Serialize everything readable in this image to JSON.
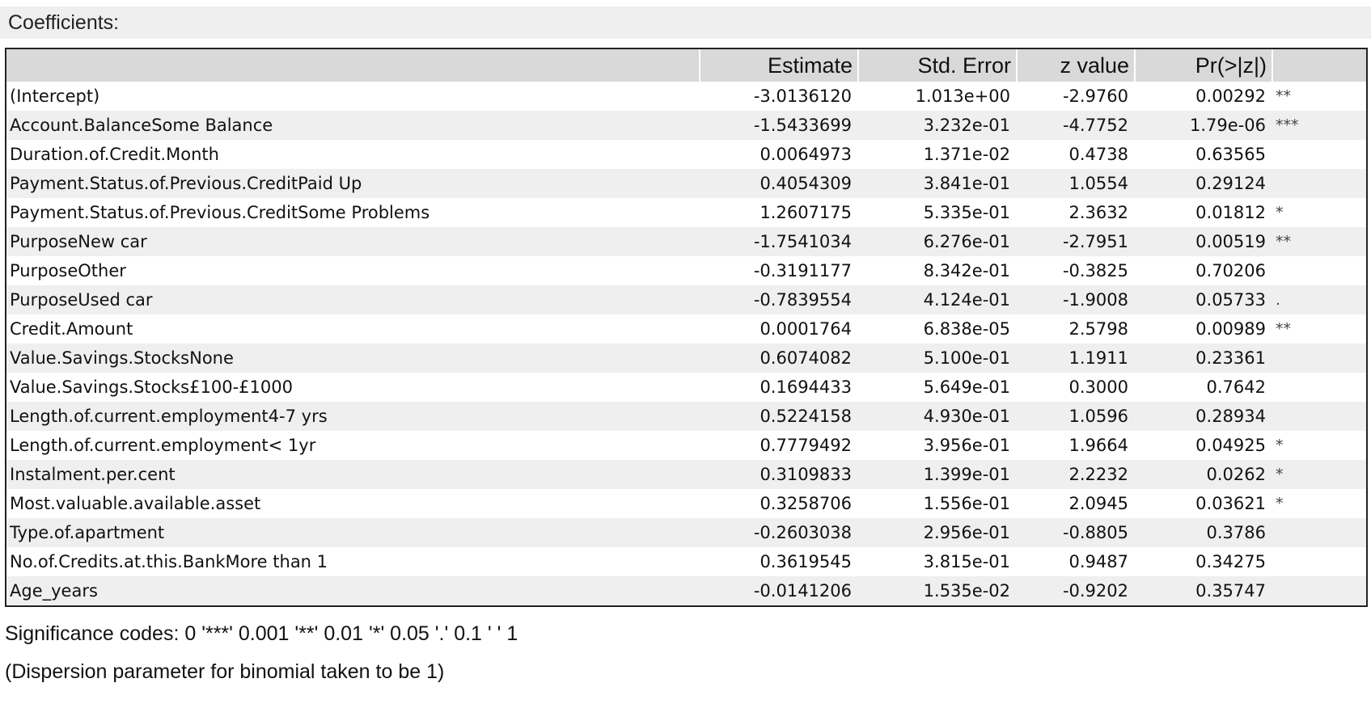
{
  "caption": "Coefficients:",
  "columns": [
    "Estimate",
    "Std. Error",
    "z value",
    "Pr(>|z|)"
  ],
  "rows": [
    {
      "term": "(Intercept)",
      "estimate": "-3.0136120",
      "std_error": "1.013e+00",
      "z_value": "-2.9760",
      "p_value": "0.00292",
      "sig": "**"
    },
    {
      "term": "Account.BalanceSome Balance",
      "estimate": "-1.5433699",
      "std_error": "3.232e-01",
      "z_value": "-4.7752",
      "p_value": "1.79e-06",
      "sig": "***"
    },
    {
      "term": "Duration.of.Credit.Month",
      "estimate": "0.0064973",
      "std_error": "1.371e-02",
      "z_value": "0.4738",
      "p_value": "0.63565",
      "sig": ""
    },
    {
      "term": "Payment.Status.of.Previous.CreditPaid Up",
      "estimate": "0.4054309",
      "std_error": "3.841e-01",
      "z_value": "1.0554",
      "p_value": "0.29124",
      "sig": ""
    },
    {
      "term": "Payment.Status.of.Previous.CreditSome Problems",
      "estimate": "1.2607175",
      "std_error": "5.335e-01",
      "z_value": "2.3632",
      "p_value": "0.01812",
      "sig": "*"
    },
    {
      "term": "PurposeNew car",
      "estimate": "-1.7541034",
      "std_error": "6.276e-01",
      "z_value": "-2.7951",
      "p_value": "0.00519",
      "sig": "**"
    },
    {
      "term": "PurposeOther",
      "estimate": "-0.3191177",
      "std_error": "8.342e-01",
      "z_value": "-0.3825",
      "p_value": "0.70206",
      "sig": ""
    },
    {
      "term": "PurposeUsed car",
      "estimate": "-0.7839554",
      "std_error": "4.124e-01",
      "z_value": "-1.9008",
      "p_value": "0.05733",
      "sig": "."
    },
    {
      "term": "Credit.Amount",
      "estimate": "0.0001764",
      "std_error": "6.838e-05",
      "z_value": "2.5798",
      "p_value": "0.00989",
      "sig": "**"
    },
    {
      "term": "Value.Savings.StocksNone",
      "estimate": "0.6074082",
      "std_error": "5.100e-01",
      "z_value": "1.1911",
      "p_value": "0.23361",
      "sig": ""
    },
    {
      "term": "Value.Savings.Stocks£100-£1000",
      "estimate": "0.1694433",
      "std_error": "5.649e-01",
      "z_value": "0.3000",
      "p_value": "0.7642",
      "sig": ""
    },
    {
      "term": "Length.of.current.employment4-7 yrs",
      "estimate": "0.5224158",
      "std_error": "4.930e-01",
      "z_value": "1.0596",
      "p_value": "0.28934",
      "sig": ""
    },
    {
      "term": "Length.of.current.employment< 1yr",
      "estimate": "0.7779492",
      "std_error": "3.956e-01",
      "z_value": "1.9664",
      "p_value": "0.04925",
      "sig": "*"
    },
    {
      "term": "Instalment.per.cent",
      "estimate": "0.3109833",
      "std_error": "1.399e-01",
      "z_value": "2.2232",
      "p_value": "0.0262",
      "sig": "*"
    },
    {
      "term": "Most.valuable.available.asset",
      "estimate": "0.3258706",
      "std_error": "1.556e-01",
      "z_value": "2.0945",
      "p_value": "0.03621",
      "sig": "*"
    },
    {
      "term": "Type.of.apartment",
      "estimate": "-0.2603038",
      "std_error": "2.956e-01",
      "z_value": "-0.8805",
      "p_value": "0.3786",
      "sig": ""
    },
    {
      "term": "No.of.Credits.at.this.BankMore than 1",
      "estimate": "0.3619545",
      "std_error": "3.815e-01",
      "z_value": "0.9487",
      "p_value": "0.34275",
      "sig": ""
    },
    {
      "term": "Age_years",
      "estimate": "-0.0141206",
      "std_error": "1.535e-02",
      "z_value": "-0.9202",
      "p_value": "0.35747",
      "sig": ""
    }
  ],
  "footer": {
    "significance": "Significance codes: 0 '***' 0.001 '**' 0.01 '*' 0.05 '.' 0.1 ' ' 1",
    "dispersion": "(Dispersion parameter for binomial taken to be 1)"
  }
}
